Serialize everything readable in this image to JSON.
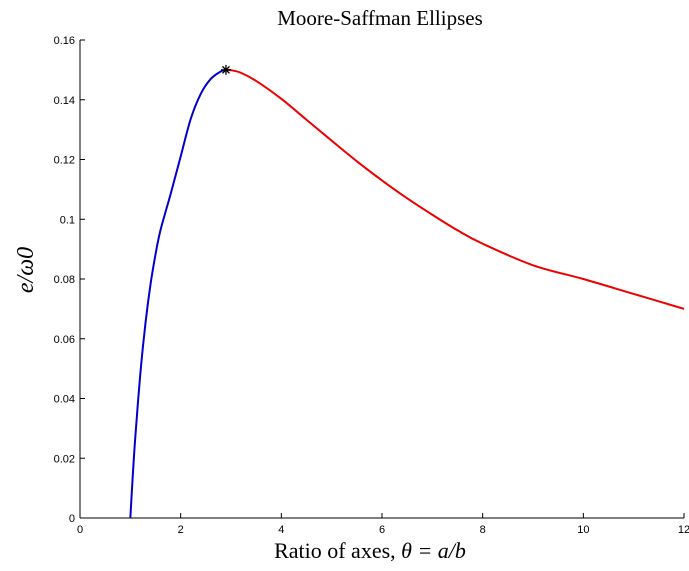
{
  "chart_data": {
    "type": "line",
    "title": "Moore-Saffman Ellipses",
    "xlabel": "Ratio of axes, θ = a/b",
    "xlabel_prefix": "Ratio of axes, ",
    "xlabel_math": "θ = a/b",
    "ylabel": "e/ω0",
    "xlim": [
      0,
      12
    ],
    "ylim": [
      0,
      0.16
    ],
    "xticks": [
      0,
      2,
      4,
      6,
      8,
      10,
      12
    ],
    "xtick_labels": [
      "0",
      "2",
      "4",
      "6",
      "8",
      "10",
      "12"
    ],
    "yticks": [
      0,
      0.02,
      0.04,
      0.06,
      0.08,
      0.1,
      0.12,
      0.14,
      0.16
    ],
    "ytick_labels": [
      "0",
      "0.02",
      "0.04",
      "0.06",
      "0.08",
      "0.1",
      "0.12",
      "0.14",
      "0.16"
    ],
    "grid": false,
    "series": [
      {
        "color": "#0000cc",
        "x": [
          1.0,
          1.05,
          1.1,
          1.2,
          1.3,
          1.4,
          1.5,
          1.6,
          1.8,
          2.0,
          2.2,
          2.4,
          2.6,
          2.8,
          2.9
        ],
        "y": [
          0.0,
          0.0146,
          0.0274,
          0.0486,
          0.0651,
          0.0781,
          0.0882,
          0.0964,
          0.1084,
          0.121,
          0.1336,
          0.142,
          0.147,
          0.1495,
          0.15
        ]
      },
      {
        "color": "#ee0000",
        "x": [
          2.9,
          3.0,
          3.2,
          3.5,
          4.0,
          4.5,
          5.0,
          5.5,
          6.0,
          6.5,
          7.0,
          7.5,
          8.0,
          9.0,
          10.0,
          11.0,
          12.0
        ],
        "y": [
          0.15,
          0.1499,
          0.149,
          0.1463,
          0.1403,
          0.1333,
          0.1263,
          0.1194,
          0.113,
          0.107,
          0.1015,
          0.0963,
          0.0918,
          0.0846,
          0.08,
          0.075,
          0.07
        ]
      }
    ],
    "marker": {
      "x": 2.9,
      "y": 0.15,
      "symbol": "*",
      "color": "#000000"
    }
  }
}
